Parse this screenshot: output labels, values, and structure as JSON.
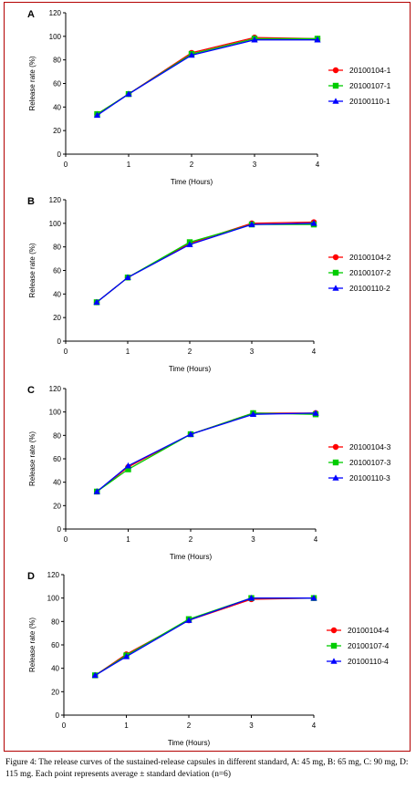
{
  "caption": "Figure 4: The release curves of the sustained-release capsules in different standard, A: 45 mg, B: 65 mg, C: 90 mg, D: 115 mg. Each point represents average ± standard deviation (n=6)",
  "colors": {
    "series_1": "#ff0000",
    "series_2": "#00cc00",
    "series_3": "#0000ff",
    "frame": "#b30000"
  },
  "chart_data": [
    {
      "type": "line",
      "panel": "A",
      "xlabel": "Time (Hours)",
      "ylabel": "Release rate (%)",
      "xlim": [
        0,
        4
      ],
      "ylim": [
        0,
        120
      ],
      "xticks": [
        "0",
        "1",
        "2",
        "3",
        "4"
      ],
      "yticks": [
        "0",
        "20",
        "40",
        "60",
        "80",
        "100",
        "120"
      ],
      "legend_position": "right",
      "grid": false,
      "x": [
        0.5,
        1,
        2,
        3,
        4
      ],
      "series": [
        {
          "name": "20100104-1",
          "marker": "circle",
          "values": [
            34,
            51,
            86,
            99,
            98
          ]
        },
        {
          "name": "20100107-1",
          "marker": "square",
          "values": [
            34,
            51,
            85,
            98,
            98
          ]
        },
        {
          "name": "20100110-1",
          "marker": "triangle",
          "values": [
            33,
            51,
            84,
            97,
            97
          ]
        }
      ]
    },
    {
      "type": "line",
      "panel": "B",
      "xlabel": "Time (Hours)",
      "ylabel": "Release rate (%)",
      "xlim": [
        0,
        4
      ],
      "ylim": [
        0,
        120
      ],
      "xticks": [
        "0",
        "1",
        "2",
        "3",
        "4"
      ],
      "yticks": [
        "0",
        "20",
        "40",
        "60",
        "80",
        "100",
        "120"
      ],
      "legend_position": "right",
      "grid": false,
      "x": [
        0.5,
        1,
        2,
        3,
        4
      ],
      "series": [
        {
          "name": "20100104-2",
          "marker": "circle",
          "values": [
            33,
            54,
            83,
            100,
            101
          ]
        },
        {
          "name": "20100107-2",
          "marker": "square",
          "values": [
            33,
            54,
            84,
            99,
            99
          ]
        },
        {
          "name": "20100110-2",
          "marker": "triangle",
          "values": [
            33,
            54,
            82,
            99,
            100
          ]
        }
      ]
    },
    {
      "type": "line",
      "panel": "C",
      "xlabel": "Time (Hours)",
      "ylabel": "Release rate (%)",
      "xlim": [
        0,
        4
      ],
      "ylim": [
        0,
        120
      ],
      "xticks": [
        "0",
        "1",
        "2",
        "3",
        "4"
      ],
      "yticks": [
        "0",
        "20",
        "40",
        "60",
        "80",
        "100",
        "120"
      ],
      "legend_position": "right",
      "grid": false,
      "x": [
        0.5,
        1,
        2,
        3,
        4
      ],
      "series": [
        {
          "name": "20100104-3",
          "marker": "circle",
          "values": [
            32,
            53,
            81,
            99,
            99
          ]
        },
        {
          "name": "20100107-3",
          "marker": "square",
          "values": [
            32,
            51,
            81,
            99,
            98
          ]
        },
        {
          "name": "20100110-3",
          "marker": "triangle",
          "values": [
            32,
            54,
            81,
            98,
            99
          ]
        }
      ]
    },
    {
      "type": "line",
      "panel": "D",
      "xlabel": "Time (Hours)",
      "ylabel": "Release rate (%)",
      "xlim": [
        0,
        4
      ],
      "ylim": [
        0,
        120
      ],
      "xticks": [
        "0",
        "1",
        "2",
        "3",
        "4"
      ],
      "yticks": [
        "0",
        "20",
        "40",
        "60",
        "80",
        "100",
        "120"
      ],
      "legend_position": "right",
      "grid": false,
      "x": [
        0.5,
        1,
        2,
        3,
        4
      ],
      "series": [
        {
          "name": "20100104-4",
          "marker": "circle",
          "values": [
            34,
            52,
            81,
            99,
            100
          ]
        },
        {
          "name": "20100107-4",
          "marker": "square",
          "values": [
            34,
            51,
            82,
            100,
            100
          ]
        },
        {
          "name": "20100110-4",
          "marker": "triangle",
          "values": [
            34,
            50,
            81,
            100,
            100
          ]
        }
      ]
    }
  ]
}
